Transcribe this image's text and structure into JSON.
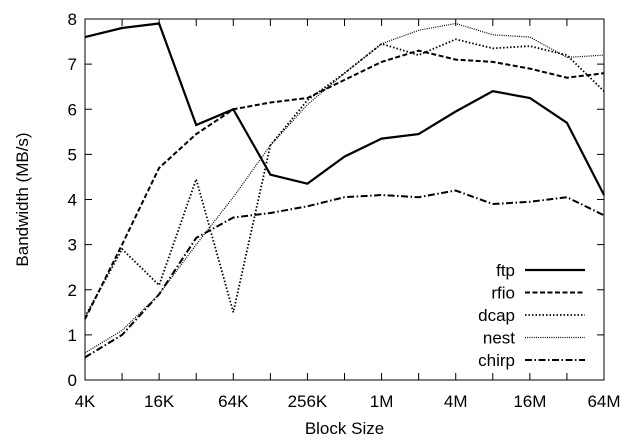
{
  "chart_data": {
    "type": "line",
    "title": "",
    "xlabel": "Block Size",
    "ylabel": "Bandwidth (MB/s)",
    "x_scale": "log2",
    "x_ticks": [
      "4K",
      "16K",
      "64K",
      "256K",
      "1M",
      "4M",
      "16M",
      "64M"
    ],
    "x": [
      "4K",
      "8K",
      "16K",
      "32K",
      "64K",
      "128K",
      "256K",
      "512K",
      "1M",
      "2M",
      "4M",
      "8M",
      "16M",
      "32M",
      "64M"
    ],
    "ylim": [
      0,
      8
    ],
    "y_ticks": [
      "0",
      "1",
      "2",
      "3",
      "4",
      "5",
      "6",
      "7",
      "8"
    ],
    "grid": false,
    "legend_position": "bottom-right",
    "series": [
      {
        "name": "ftp",
        "style": "solid",
        "values": [
          7.6,
          7.8,
          7.9,
          5.65,
          6.0,
          4.55,
          4.35,
          4.95,
          5.35,
          5.45,
          5.95,
          6.4,
          6.25,
          5.7,
          4.1
        ]
      },
      {
        "name": "rfio",
        "style": "dashed",
        "values": [
          1.35,
          3.0,
          4.7,
          5.45,
          6.0,
          6.15,
          6.25,
          6.65,
          7.05,
          7.3,
          7.1,
          7.05,
          6.9,
          6.7,
          6.8
        ]
      },
      {
        "name": "dcap",
        "style": "dotted",
        "values": [
          1.4,
          2.9,
          2.1,
          4.45,
          1.5,
          5.2,
          6.2,
          6.8,
          7.45,
          7.2,
          7.55,
          7.35,
          7.4,
          7.2,
          6.4
        ]
      },
      {
        "name": "nest",
        "style": "fine-dotted",
        "values": [
          0.6,
          1.1,
          1.9,
          3.0,
          4.05,
          5.2,
          6.1,
          6.8,
          7.45,
          7.75,
          7.9,
          7.65,
          7.6,
          7.15,
          7.2
        ]
      },
      {
        "name": "chirp",
        "style": "dashdot",
        "values": [
          0.5,
          1.0,
          1.9,
          3.15,
          3.6,
          3.7,
          3.85,
          4.05,
          4.1,
          4.05,
          4.2,
          3.9,
          3.95,
          4.05,
          3.65
        ]
      }
    ]
  }
}
